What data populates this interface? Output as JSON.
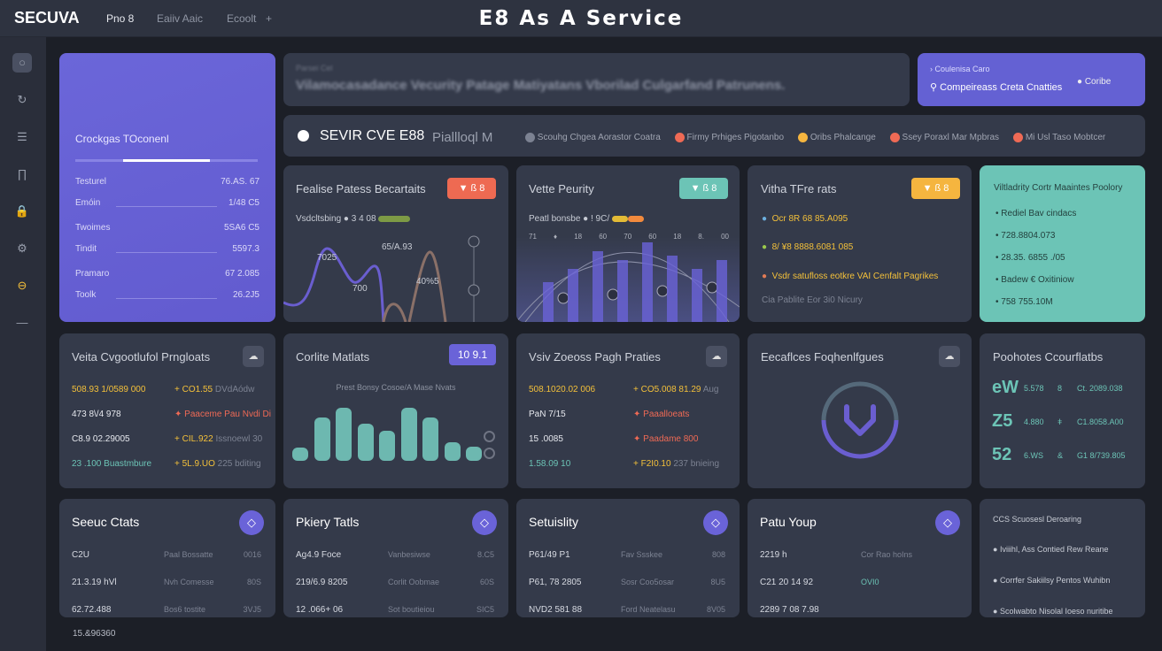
{
  "header": {
    "logo": "SECUVA",
    "nav": [
      "Pno 8",
      "Eaiiv Aaic",
      "Ecoolt"
    ],
    "add": "+",
    "title": "E8 As A Service"
  },
  "sidebar": {
    "icons": [
      "circle-icon",
      "refresh-icon",
      "sliders-icon",
      "columns-icon",
      "lock-icon",
      "gear-icon",
      "database-icon",
      "minus-icon"
    ],
    "glyphs": [
      "○",
      "↻",
      "☰",
      "∏",
      "🔒",
      "⚙",
      "⊖",
      "—"
    ],
    "active": 6
  },
  "colors": {
    "accent": "#6a63d8",
    "teal": "#6cc4b6",
    "orange": "#ef6a55",
    "yellow": "#f5b53f",
    "card": "#343a4a"
  },
  "profile": {
    "title": "Crockgas TOconenl",
    "progress": 0.48,
    "rows": [
      {
        "label": "Testurel",
        "value": "76.AS. 67"
      },
      {
        "label": "Emóin",
        "value": "1/48 C5"
      },
      {
        "label": "Twoimes",
        "value": "5SA6 C5"
      },
      {
        "label": "Tindit",
        "value": "5597.3"
      },
      {
        "label": "Pramaro",
        "value": "67 2.085"
      },
      {
        "label": "Toolk",
        "value": "26.2J5"
      }
    ]
  },
  "banner": {
    "kicker": "Parsei Cel",
    "text": "Vilamocasadance Vecurity Patage Matiyatans Vborilad Culgarfand Patrunens."
  },
  "promo": {
    "line1": "Coulenisa Caro",
    "line2": "Compeireass Creta Cnatties",
    "button": "Coribe"
  },
  "strip": {
    "title": "SEVIR CVE  E88",
    "subtitle": "Piallloql M",
    "items": [
      {
        "label": "Scouhg Chgea Aorastor Coatra",
        "color": "#7c8292"
      },
      {
        "label": "Firmy Prhiges Pigotanbo",
        "color": "#ef6a55"
      },
      {
        "label": "Oribs Phalcange",
        "color": "#f5b53f"
      },
      {
        "label": "Ssey Poraxl Mar Mpbras",
        "color": "#ef6a55"
      },
      {
        "label": "Mi Usl Taso Mobtcer",
        "color": "#ef6a55"
      }
    ]
  },
  "row2": {
    "c1": {
      "title": "Fealise Patess Becartaits",
      "badge": "▼ ß  8",
      "legend": "Vsdcltsbing  ● 3 4 08",
      "labels": [
        "7025",
        "700",
        "65/A.93",
        "40%5"
      ]
    },
    "c2": {
      "title": "Vette Peurity",
      "badge": "▼ ß  8",
      "legend": "Peatl bonsbe  ● ! 9C/",
      "ticks": [
        "71",
        "♦",
        "18",
        "60",
        "70",
        "60",
        "18",
        "8.",
        "00"
      ]
    },
    "c3": {
      "title": "Vitha TFre rats",
      "badge": "▼ ß  8",
      "items": [
        "Ocr 8R 68 85.A095",
        "8/ ¥8 8888.6081 085",
        "Vsdr satufloss eotkre VAI Cenfalt Pagrikes"
      ],
      "footer": "Cia Pablite  Eor 3i0 Nicury"
    },
    "c4": {
      "title": "Viltladrity Cortr Maaintes Poolory",
      "items": [
        "Rediel Bav cindacs",
        "728.8804.073",
        "28.35. 6855 ./05",
        "Badew € Oxitiniow",
        "758 755.10M"
      ]
    }
  },
  "row3": {
    "c1": {
      "title": "Veita Cvgootlufol Prngloats",
      "rows": [
        {
          "a": "508.93 1/0589 000",
          "b": "+ CO1.55",
          "c": "DVdAódw",
          "ac": "y",
          "bc": "y"
        },
        {
          "a": "473 8\\/4 978",
          "b": "✦ Paaceme Pau Nvdi Di",
          "c": "",
          "ac": "",
          "bc": "r"
        },
        {
          "a": "C8.9 02.29005",
          "b": "+ CIL.922",
          "c": "Issnoewl 30",
          "ac": "",
          "bc": "y"
        },
        {
          "a": "23 .100 Buastmbure",
          "b": "+ 5L.9.UO",
          "c": "225 bditing",
          "ac": "t",
          "bc": "y"
        }
      ]
    },
    "c2": {
      "title": "Corlite Matlats",
      "badge": "10 9.1",
      "subtitle": "Prest Bonsy Cosoe/A Mase Nvats",
      "chart_values": [
        14,
        46,
        56,
        39,
        32,
        56,
        46,
        20,
        15
      ]
    },
    "c3": {
      "title": "Vsiv Zoeoss Pagh Praties",
      "rows": [
        {
          "a": "508.1020.02 006",
          "b": "+ CO5.008 81.29",
          "c": "Aug",
          "ac": "y",
          "bc": "y"
        },
        {
          "a": "PaN 7/15",
          "b": "✦ Paaalloeats",
          "c": "",
          "ac": "",
          "bc": "r"
        },
        {
          "a": "15 .0085",
          "b": "✦ Paadame 800",
          "c": "",
          "ac": "",
          "bc": "r"
        },
        {
          "a": "1.58.09 10",
          "b": "+ F2I0.10",
          "c": "237 bnieing",
          "ac": "t",
          "bc": "y"
        }
      ]
    },
    "c4": {
      "title": "Eecaflces Foqhenlfgues"
    },
    "c5": {
      "title": "Poohotes Ccourflatbs",
      "rows": [
        {
          "big": "eW",
          "a": "5.578",
          "b": "8",
          "c": "Ct. 2089.038"
        },
        {
          "big": "Z5",
          "a": "4.880",
          "b": "ǂ",
          "c": "C1.8058.A00"
        },
        {
          "big": "52",
          "a": "6.WS",
          "b": "&",
          "c": "G1 8/739.805"
        }
      ]
    }
  },
  "row4": [
    {
      "title": "Seeuc Ctats",
      "rows": [
        [
          "C2U",
          "Paal Bossatte",
          "0016"
        ],
        [
          "21.3.19 hVl",
          "Nvh Comesse",
          "80S"
        ],
        [
          "62.72.488",
          "Bos6 tostite",
          "3VJ5"
        ]
      ]
    },
    {
      "title": "Pkiery Tatls",
      "rows": [
        [
          "Ag4.9 Foce",
          "Vanbesiwse",
          "8.C5"
        ],
        [
          "219/6.9 8205",
          "Corlit Oobmae",
          "60S"
        ],
        [
          "12 .066+ 06",
          "Sot boutieiou",
          "SIC5"
        ]
      ]
    },
    {
      "title": "Setuislity",
      "rows": [
        [
          "P61/49 P1",
          "Fav Ssskee",
          "808"
        ],
        [
          "P61, 78 2805",
          "Sosr Coo5osar",
          "8U5"
        ],
        [
          "NVD2 581 88",
          "Ford Neatelasu",
          "8V05"
        ]
      ]
    },
    {
      "title": "Patu Youp",
      "rows": [
        [
          "2219 h",
          "Cor Rao hoIns",
          ""
        ],
        [
          "C21 20 14 92",
          "OVI0",
          ""
        ],
        [
          "2289 7 08 7.98",
          "",
          ""
        ]
      ]
    }
  ],
  "row4_last": {
    "title": "CCS Scuosesl Deroaring",
    "items": [
      "Iviiihl, Ass Contied Rew Reane",
      "Corrfer Sakiilsy Pentos Wuhibn",
      "Scolwabto Nisolal Ioeso nuritibe"
    ]
  },
  "footer": {
    "text": "15.&96360"
  }
}
